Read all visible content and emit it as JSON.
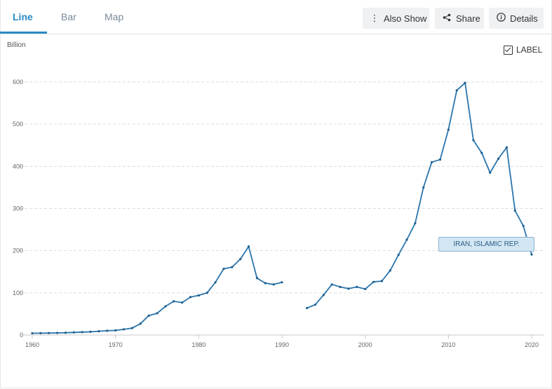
{
  "tabs": [
    {
      "label": "Line"
    },
    {
      "label": "Bar"
    },
    {
      "label": "Map"
    }
  ],
  "toolbar": {
    "also_show": "Also Show",
    "share": "Share",
    "details": "Details"
  },
  "label_toggle": {
    "label": "LABEL",
    "checked": true
  },
  "colors": {
    "line": "#2a75ad",
    "accent": "#2a8ac4",
    "tooltip_bg": "#d3e6f3"
  },
  "chart_data": {
    "type": "line",
    "ylabel": "Billion",
    "xlim": [
      1960,
      2021
    ],
    "ylim": [
      0,
      600
    ],
    "xticks": [
      1960,
      1970,
      1980,
      1990,
      2000,
      2010,
      2020
    ],
    "yticks": [
      0,
      100,
      200,
      300,
      400,
      500,
      600
    ],
    "grid": true,
    "series": [
      {
        "name": "IRAN, ISLAMIC REP.",
        "x": [
          1960,
          1961,
          1962,
          1963,
          1964,
          1965,
          1966,
          1967,
          1968,
          1969,
          1970,
          1971,
          1972,
          1973,
          1974,
          1975,
          1976,
          1977,
          1978,
          1979,
          1980,
          1981,
          1982,
          1983,
          1984,
          1985,
          1986,
          1987,
          1988,
          1989,
          1990,
          1991,
          1992,
          1993,
          1994,
          1995,
          1996,
          1997,
          1998,
          1999,
          2000,
          2001,
          2002,
          2003,
          2004,
          2005,
          2006,
          2007,
          2008,
          2009,
          2010,
          2011,
          2012,
          2013,
          2014,
          2015,
          2016,
          2017,
          2018,
          2019,
          2020
        ],
        "y": [
          4.2,
          4.4,
          4.7,
          5.0,
          5.5,
          6.2,
          6.9,
          7.7,
          9.0,
          10.2,
          11.0,
          13.5,
          16.5,
          27.0,
          46.0,
          51.5,
          68.0,
          80.0,
          77.0,
          90.0,
          94.0,
          100.0,
          125.0,
          157.0,
          161.0,
          180.0,
          210.0,
          135.0,
          123.0,
          120.0,
          125.0,
          null,
          null,
          64.0,
          72.0,
          95.0,
          120.0,
          114.0,
          110.0,
          114.0,
          109.0,
          126.0,
          128.0,
          153.0,
          190.0,
          226.0,
          265.0,
          350.0,
          410.0,
          416.0,
          487.0,
          580.0,
          598.0,
          462.0,
          432.0,
          385.0,
          418.0,
          445.0,
          295.0,
          259.0,
          191.0
        ]
      }
    ],
    "label": "IRAN, ISLAMIC REP."
  }
}
